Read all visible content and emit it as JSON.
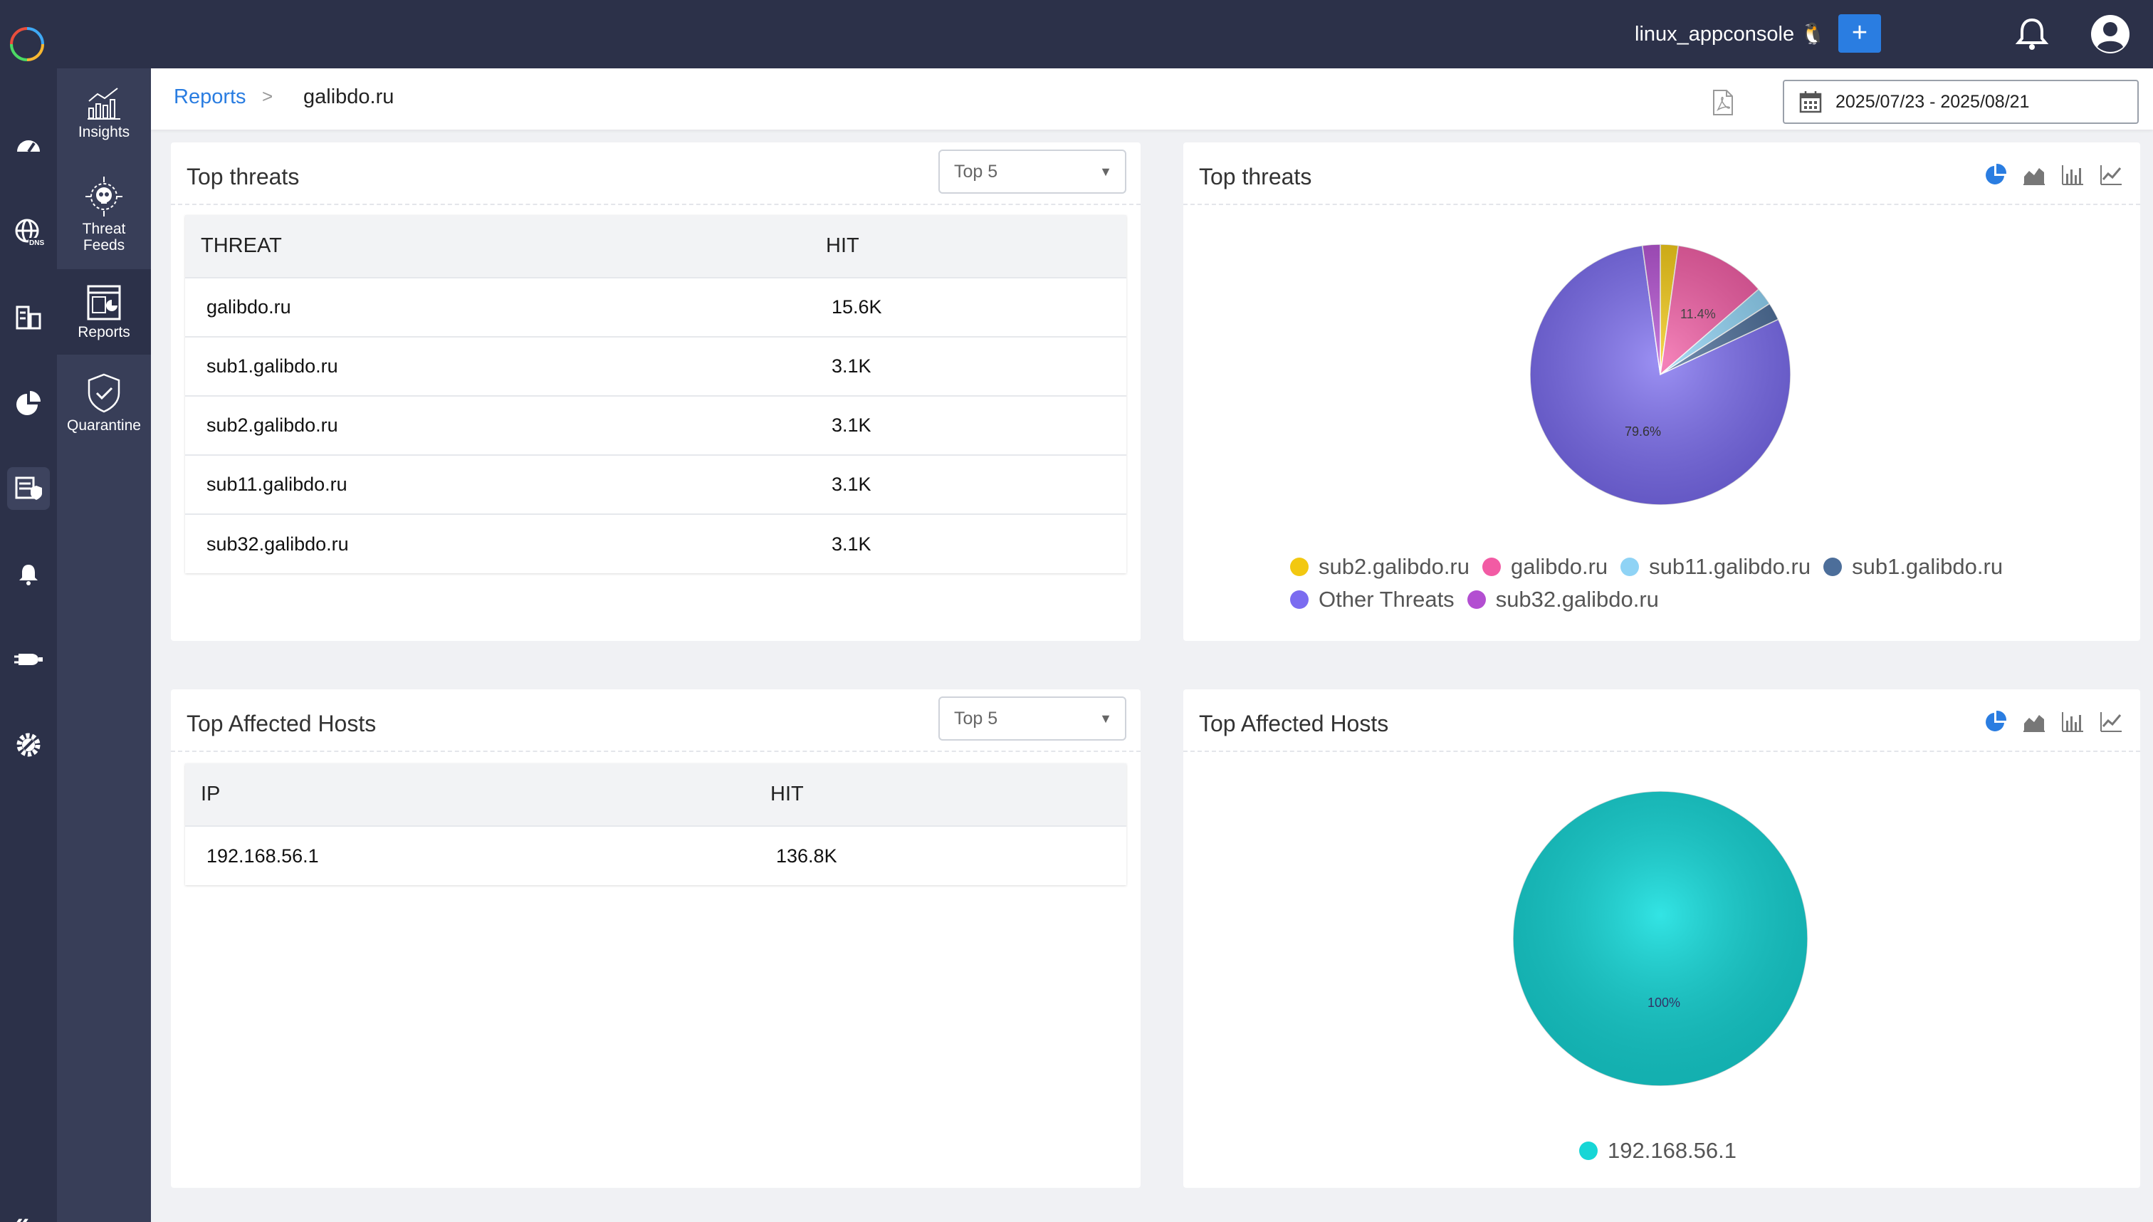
{
  "header": {
    "app_name": "linux_appconsole 🐧",
    "add_label": "+"
  },
  "subnav": {
    "items": [
      {
        "label": "Insights"
      },
      {
        "label": "Threat Feeds"
      },
      {
        "label": "Reports"
      },
      {
        "label": "Quarantine"
      }
    ],
    "collapse_label": "«"
  },
  "breadcrumb": {
    "parent": "Reports",
    "separator": ">",
    "current": "galibdo.ru"
  },
  "date_range": "2025/07/23 - 2025/08/21",
  "threats_table": {
    "title": "Top threats",
    "select_value": "Top 5",
    "columns": [
      "THREAT",
      "HIT"
    ],
    "rows": [
      [
        "galibdo.ru",
        "15.6K"
      ],
      [
        "sub1.galibdo.ru",
        "3.1K"
      ],
      [
        "sub2.galibdo.ru",
        "3.1K"
      ],
      [
        "sub11.galibdo.ru",
        "3.1K"
      ],
      [
        "sub32.galibdo.ru",
        "3.1K"
      ]
    ]
  },
  "hosts_table": {
    "title": "Top Affected Hosts",
    "select_value": "Top 5",
    "columns": [
      "IP",
      "HIT"
    ],
    "rows": [
      [
        "192.168.56.1",
        "136.8K"
      ]
    ]
  },
  "threats_chart_title": "Top threats",
  "hosts_chart_title": "Top Affected Hosts",
  "chart_data": [
    {
      "type": "pie",
      "title": "Top threats",
      "slices": [
        {
          "label": "sub2.galibdo.ru",
          "value": 2.2,
          "color": "#f2c811"
        },
        {
          "label": "galibdo.ru",
          "value": 11.4,
          "color": "#f25ba4"
        },
        {
          "label": "sub11.galibdo.ru",
          "value": 2.2,
          "color": "#8fd3f5"
        },
        {
          "label": "sub1.galibdo.ru",
          "value": 2.2,
          "color": "#4c6e9a"
        },
        {
          "label": "Other Threats",
          "value": 79.6,
          "color": "#7b6cf0"
        },
        {
          "label": "sub32.galibdo.ru",
          "value": 2.2,
          "color": "#b34fd1"
        }
      ],
      "data_labels": [
        "11.4%",
        "79.6%"
      ],
      "legend": "bottom"
    },
    {
      "type": "pie",
      "title": "Top Affected Hosts",
      "slices": [
        {
          "label": "192.168.56.1",
          "value": 100,
          "color": "#17d6d6"
        }
      ],
      "data_labels": [
        "100%"
      ],
      "legend": "bottom"
    }
  ]
}
